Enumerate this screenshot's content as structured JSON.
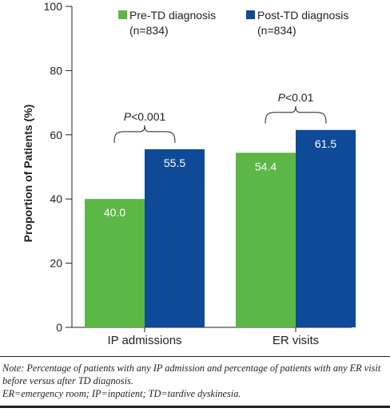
{
  "chart_data": {
    "type": "bar",
    "ylabel": "Proportion of Patients (%)",
    "xlabel": "",
    "ylim": [
      0,
      100
    ],
    "yticks": [
      0,
      20,
      40,
      60,
      80,
      100
    ],
    "grid": false,
    "legend_position": "top-right",
    "categories": [
      "IP admissions",
      "ER visits"
    ],
    "series": [
      {
        "name": "Pre-TD diagnosis",
        "sublabel": "(n=834)",
        "color": "#5cb746",
        "values": [
          40.0,
          54.4
        ],
        "value_labels": [
          "40.0",
          "54.4"
        ]
      },
      {
        "name": "Post-TD diagnosis",
        "sublabel": "(n=834)",
        "color": "#0e4a97",
        "values": [
          55.5,
          61.5
        ],
        "value_labels": [
          "55.5",
          "61.5"
        ]
      }
    ],
    "annotations": [
      {
        "category": "IP admissions",
        "prefix": "P",
        "text": "<0.001"
      },
      {
        "category": "ER visits",
        "prefix": "P",
        "text": "<0.01"
      }
    ]
  },
  "note": {
    "line1": "Note: Percentage of patients with any IP admission and percentage of patients with any ER visit before versus after TD diagnosis.",
    "line2": "ER=emergency room; IP=inpatient; TD=tardive dyskinesia."
  }
}
